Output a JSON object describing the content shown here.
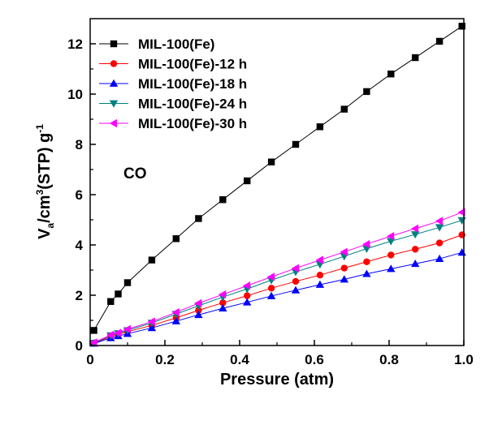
{
  "chart_data": {
    "type": "line",
    "title": "",
    "xlabel": "Pressure (atm)",
    "ylabel": {
      "main_1": "V",
      "sub_1": "a",
      "main_2": "/cm",
      "sup_1": "3",
      "main_3": "(STP) g",
      "sup_2": "-1"
    },
    "xlim": [
      0,
      1.0
    ],
    "ylim": [
      0,
      13
    ],
    "xticks": [
      0,
      0.2,
      0.4,
      0.6,
      0.8,
      1.0
    ],
    "xtick_labels": [
      "0",
      "0.2",
      "0.4",
      "0.6",
      "0.8",
      "1.0"
    ],
    "yticks": [
      0,
      2,
      4,
      6,
      8,
      10,
      12
    ],
    "ytick_labels": [
      "0",
      "2",
      "4",
      "6",
      "8",
      "10",
      "12"
    ],
    "grid": false,
    "legend_position": "top-left",
    "annotation": "CO",
    "series": [
      {
        "name": "MIL-100(Fe)",
        "color": "#000000",
        "marker": "square",
        "x": [
          0.01,
          0.055,
          0.075,
          0.1,
          0.165,
          0.23,
          0.29,
          0.355,
          0.42,
          0.485,
          0.55,
          0.615,
          0.68,
          0.74,
          0.805,
          0.87,
          0.935,
          0.995
        ],
        "y": [
          0.6,
          1.75,
          2.05,
          2.5,
          3.4,
          4.25,
          5.05,
          5.8,
          6.55,
          7.3,
          8.0,
          8.7,
          9.4,
          10.1,
          10.8,
          11.45,
          12.1,
          12.7
        ]
      },
      {
        "name": "MIL-100(Fe)-12 h",
        "color": "#ff0000",
        "marker": "circle",
        "x": [
          0.01,
          0.055,
          0.075,
          0.1,
          0.165,
          0.23,
          0.29,
          0.355,
          0.42,
          0.485,
          0.55,
          0.615,
          0.68,
          0.74,
          0.805,
          0.87,
          0.935,
          0.995
        ],
        "y": [
          0.1,
          0.35,
          0.45,
          0.55,
          0.8,
          1.1,
          1.4,
          1.7,
          1.98,
          2.28,
          2.55,
          2.8,
          3.08,
          3.33,
          3.6,
          3.83,
          4.08,
          4.4
        ]
      },
      {
        "name": "MIL-100(Fe)-18 h",
        "color": "#0000ff",
        "marker": "triangle-up",
        "x": [
          0.01,
          0.055,
          0.075,
          0.1,
          0.165,
          0.23,
          0.29,
          0.355,
          0.42,
          0.485,
          0.55,
          0.615,
          0.68,
          0.74,
          0.805,
          0.87,
          0.935,
          0.995
        ],
        "y": [
          0.08,
          0.3,
          0.38,
          0.47,
          0.7,
          0.97,
          1.22,
          1.48,
          1.72,
          1.97,
          2.2,
          2.42,
          2.63,
          2.85,
          3.05,
          3.25,
          3.45,
          3.7
        ]
      },
      {
        "name": "MIL-100(Fe)-24 h",
        "color": "#008080",
        "marker": "triangle-down",
        "x": [
          0.01,
          0.055,
          0.075,
          0.1,
          0.165,
          0.23,
          0.29,
          0.355,
          0.42,
          0.485,
          0.55,
          0.615,
          0.68,
          0.74,
          0.805,
          0.87,
          0.935,
          0.995
        ],
        "y": [
          0.1,
          0.4,
          0.48,
          0.6,
          0.9,
          1.25,
          1.58,
          1.93,
          2.25,
          2.6,
          2.93,
          3.23,
          3.55,
          3.85,
          4.15,
          4.42,
          4.7,
          4.98
        ]
      },
      {
        "name": "MIL-100(Fe)-30 h",
        "color": "#ff00ff",
        "marker": "triangle-left",
        "x": [
          0.01,
          0.055,
          0.075,
          0.1,
          0.165,
          0.23,
          0.29,
          0.355,
          0.42,
          0.485,
          0.55,
          0.615,
          0.68,
          0.74,
          0.805,
          0.87,
          0.935,
          0.995
        ],
        "y": [
          0.12,
          0.42,
          0.5,
          0.65,
          0.95,
          1.32,
          1.68,
          2.03,
          2.38,
          2.73,
          3.07,
          3.4,
          3.72,
          4.03,
          4.35,
          4.65,
          4.95,
          5.3
        ]
      }
    ]
  }
}
